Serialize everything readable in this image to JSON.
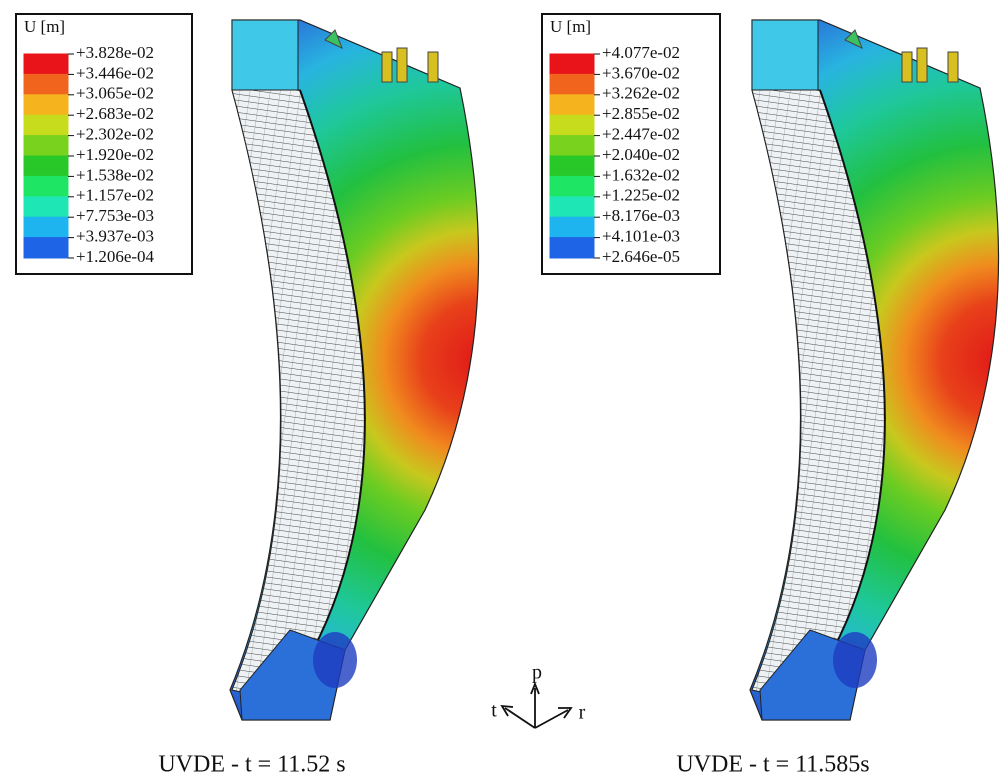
{
  "panels": [
    {
      "legend": {
        "title": "U [m]",
        "labels": [
          "+3.828e-02",
          "+3.446e-02",
          "+3.065e-02",
          "+2.683e-02",
          "+2.302e-02",
          "+1.920e-02",
          "+1.538e-02",
          "+1.157e-02",
          "+7.753e-03",
          "+3.937e-03",
          "+1.206e-04"
        ]
      },
      "caption": "UVDE - t = 11.52 s"
    },
    {
      "legend": {
        "title": "U [m]",
        "labels": [
          "+4.077e-02",
          "+3.670e-02",
          "+3.262e-02",
          "+2.855e-02",
          "+2.447e-02",
          "+2.040e-02",
          "+1.632e-02",
          "+1.225e-02",
          "+8.176e-03",
          "+4.101e-03",
          "+2.646e-05"
        ]
      },
      "caption": "UVDE - t = 11.585s"
    }
  ],
  "legend_colors": [
    "#e8141a",
    "#f0641e",
    "#f5b41e",
    "#c8dc1e",
    "#78d21e",
    "#28c828",
    "#1ee664",
    "#1ee6b4",
    "#1eb4f0",
    "#1e64e6",
    "#1414d2"
  ],
  "triad": {
    "p": "p",
    "t": "t",
    "r": "r"
  }
}
